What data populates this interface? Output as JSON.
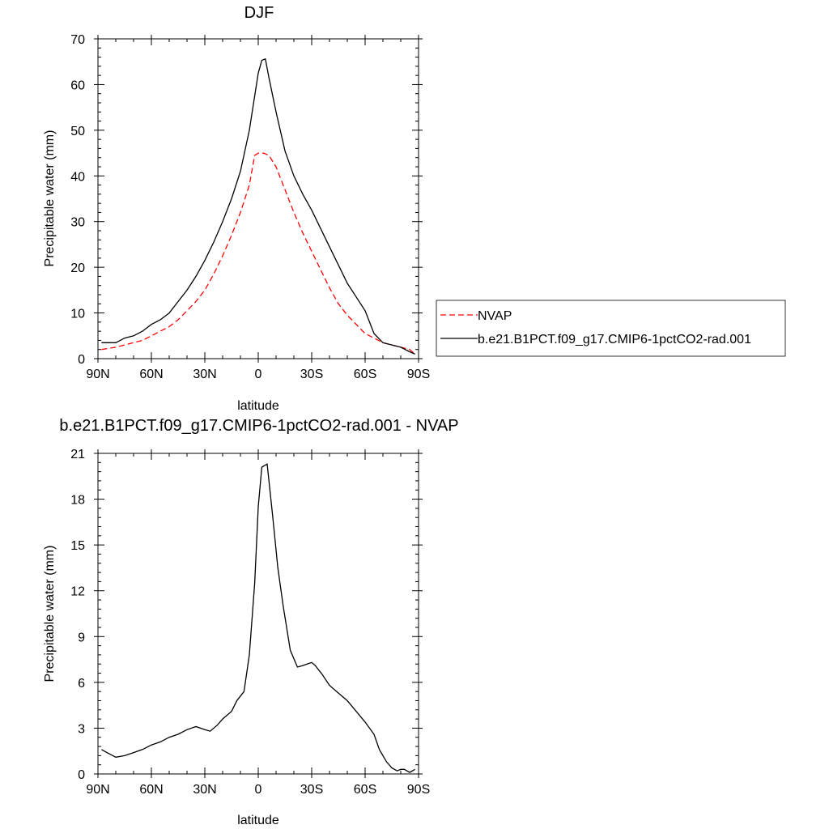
{
  "colors": {
    "nvap": "#ff0000",
    "model": "#000000"
  },
  "chart_data": [
    {
      "type": "line",
      "title": "DJF",
      "xlabel": "latitude",
      "ylabel": "Precipitable water (mm)",
      "xlim": [
        90,
        -90
      ],
      "ylim": [
        0,
        70
      ],
      "xticks": [
        90,
        60,
        30,
        0,
        -30,
        -60,
        -90
      ],
      "xtick_labels": [
        "90N",
        "60N",
        "30N",
        "0",
        "30S",
        "60S",
        "90S"
      ],
      "yticks": [
        0,
        10,
        20,
        30,
        40,
        50,
        60,
        70
      ],
      "ytick_labels": [
        "0",
        "10",
        "20",
        "30",
        "40",
        "50",
        "60",
        "70"
      ],
      "legend": {
        "placement": "right",
        "entries": [
          "NVAP",
          "b.e21.B1PCT.f09_g17.CMIP6-1pctCO2-rad.001"
        ]
      },
      "series": [
        {
          "name": "NVAP",
          "style": "dashed",
          "x": [
            88,
            80,
            75,
            70,
            65,
            60,
            55,
            50,
            45,
            40,
            35,
            30,
            25,
            20,
            15,
            10,
            5,
            2,
            0,
            -3,
            -6,
            -10,
            -15,
            -20,
            -25,
            -30,
            -35,
            -40,
            -45,
            -50,
            -55,
            -60,
            -65,
            -70,
            -75,
            -80,
            -85,
            -88
          ],
          "y": [
            2,
            2.5,
            3,
            3.5,
            4,
            5,
            6,
            7,
            8.5,
            10.5,
            12.5,
            15,
            18.5,
            22.5,
            27,
            32,
            38,
            44.5,
            45,
            45,
            44.5,
            42,
            37,
            32,
            27.5,
            23.5,
            19.5,
            15.5,
            12,
            9.5,
            7.5,
            5.5,
            4.5,
            3.5,
            3,
            2.5,
            2,
            1
          ]
        },
        {
          "name": "b.e21.B1PCT.f09_g17.CMIP6-1pctCO2-rad.001",
          "style": "solid",
          "x": [
            88,
            80,
            75,
            70,
            65,
            60,
            55,
            50,
            45,
            40,
            35,
            30,
            25,
            20,
            15,
            10,
            5,
            2,
            0,
            -2,
            -4,
            -6,
            -10,
            -15,
            -20,
            -25,
            -30,
            -35,
            -40,
            -45,
            -50,
            -55,
            -60,
            -65,
            -70,
            -75,
            -80,
            -85,
            -88
          ],
          "y": [
            3.5,
            3.5,
            4.5,
            5,
            6,
            7.5,
            8.5,
            10,
            12.5,
            15,
            18,
            21.5,
            25.5,
            30,
            35,
            41,
            50,
            57.5,
            62.5,
            65.3,
            65.6,
            61.5,
            54,
            45.5,
            40,
            36,
            32.5,
            28.5,
            24.5,
            20.5,
            16.5,
            13.5,
            10.5,
            5.5,
            3.5,
            3,
            2.5,
            1.5,
            1
          ]
        }
      ]
    },
    {
      "type": "line",
      "title": "b.e21.B1PCT.f09_g17.CMIP6-1pctCO2-rad.001 - NVAP",
      "xlabel": "latitude",
      "ylabel": "Precipitable water (mm)",
      "xlim": [
        90,
        -90
      ],
      "ylim": [
        0,
        21
      ],
      "xticks": [
        90,
        60,
        30,
        0,
        -30,
        -60,
        -90
      ],
      "xtick_labels": [
        "90N",
        "60N",
        "30N",
        "0",
        "30S",
        "60S",
        "90S"
      ],
      "yticks": [
        0,
        3,
        6,
        9,
        12,
        15,
        18,
        21
      ],
      "ytick_labels": [
        "0",
        "3",
        "6",
        "9",
        "12",
        "15",
        "18",
        "21"
      ],
      "series": [
        {
          "style": "solid",
          "x": [
            88,
            85,
            80,
            75,
            70,
            65,
            60,
            55,
            50,
            45,
            40,
            35,
            30,
            27,
            23,
            20,
            15,
            12,
            8,
            5,
            2,
            0,
            -2,
            -5,
            -8,
            -11,
            -14,
            -18,
            -22,
            -25,
            -30,
            -32,
            -36,
            -40,
            -45,
            -50,
            -55,
            -60,
            -65,
            -68,
            -72,
            -75,
            -78,
            -80,
            -82,
            -85,
            -88
          ],
          "y": [
            1.6,
            1.4,
            1.1,
            1.2,
            1.4,
            1.6,
            1.9,
            2.1,
            2.4,
            2.6,
            2.9,
            3.1,
            2.9,
            2.8,
            3.2,
            3.6,
            4.1,
            4.8,
            5.4,
            7.8,
            12.5,
            17.5,
            20.1,
            20.3,
            17.0,
            13.5,
            11.0,
            8.1,
            7.0,
            7.1,
            7.3,
            7.1,
            6.5,
            5.8,
            5.3,
            4.8,
            4.1,
            3.4,
            2.6,
            1.6,
            0.8,
            0.4,
            0.2,
            0.3,
            0.3,
            0.1,
            0.3
          ]
        }
      ]
    }
  ]
}
